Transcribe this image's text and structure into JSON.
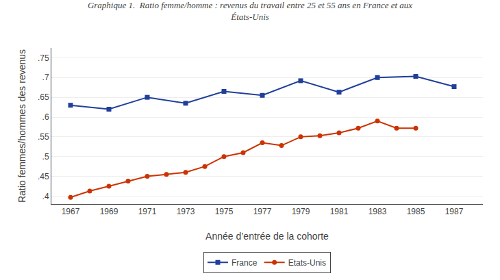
{
  "chart_data": {
    "type": "line",
    "title": "Graphique 1.  Ratio femme/homme : revenus du travail entre 25 et 55 ans en France et aux\nÉtats-Unis",
    "x_label": "Année d’entrée de la cohorte",
    "y_label": "Ratio femmes/hommes des revenus",
    "series": [
      {
        "name": "France",
        "color": "#1f3f99",
        "marker": "square",
        "line_style": "solid",
        "x": [
          1967,
          1969,
          1971,
          1973,
          1975,
          1977,
          1979,
          1981,
          1983,
          1985,
          1987
        ],
        "values": [
          0.63,
          0.62,
          0.65,
          0.635,
          0.665,
          0.655,
          0.692,
          0.663,
          0.7,
          0.703,
          0.677
        ]
      },
      {
        "name": "Etats-Unis",
        "color": "#cc3300",
        "marker": "circle",
        "line_style": "solid",
        "x": [
          1967,
          1968,
          1969,
          1970,
          1971,
          1972,
          1973,
          1974,
          1975,
          1976,
          1977,
          1978,
          1979,
          1980,
          1981,
          1982,
          1983,
          1984,
          1985
        ],
        "values": [
          0.397,
          0.413,
          0.425,
          0.438,
          0.45,
          0.455,
          0.46,
          0.475,
          0.5,
          0.51,
          0.535,
          0.528,
          0.55,
          0.553,
          0.56,
          0.572,
          0.59,
          0.572,
          0.572
        ]
      }
    ],
    "xlim": [
      1966.0,
      1988.5
    ],
    "xticks": [
      1967,
      1969,
      1971,
      1973,
      1975,
      1977,
      1979,
      1981,
      1983,
      1985,
      1987
    ],
    "ylim": [
      0.38,
      0.775
    ],
    "yticks": [
      {
        "value": 0.4,
        "label": ".4"
      },
      {
        "value": 0.45,
        "label": ".45"
      },
      {
        "value": 0.5,
        "label": ".5"
      },
      {
        "value": 0.55,
        "label": ".55"
      },
      {
        "value": 0.6,
        "label": ".6"
      },
      {
        "value": 0.65,
        "label": ".65"
      },
      {
        "value": 0.7,
        "label": ".7"
      },
      {
        "value": 0.75,
        "label": ".75"
      }
    ],
    "grid": "y",
    "legend": "bottom"
  }
}
